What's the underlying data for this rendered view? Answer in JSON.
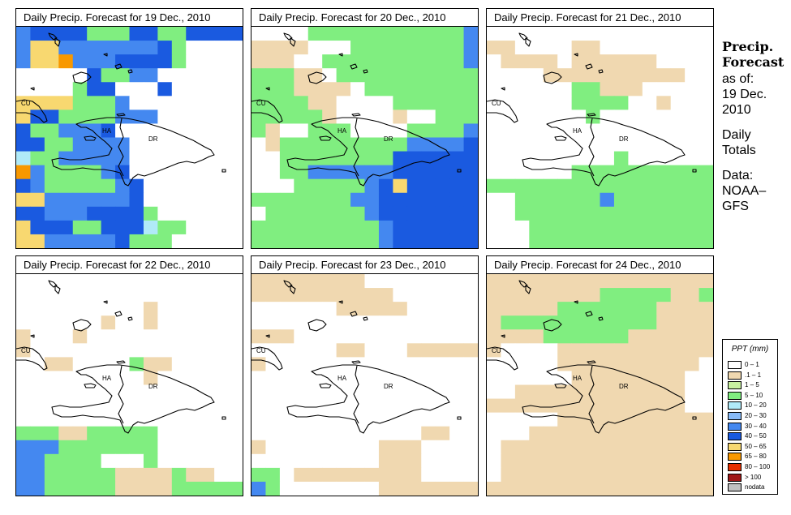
{
  "panels": [
    {
      "title": "Daily Precip. Forecast for  19 Dec., 2010",
      "grid": [
        "6777733377337777",
        "6886666666730000",
        "6889666777730000",
        "0000073366000000",
        "0000377000700000",
        "8888333600000000",
        "8773333666000000",
        "7336667000000000",
        "7733666600000000",
        "4336666600000000",
        "9633336700000000",
        "7633333670000000",
        "8866666670000000",
        "7766677773000000",
        "8777337774330000",
        "8866666733300000"
      ]
    },
    {
      "title": "Daily Precip. Forecast for  20 Dec., 2010",
      "grid": [
        "0000333333333336",
        "1111000333333336",
        "1110033333333336",
        "3331103333333333",
        "3331111033333333",
        "3333110000333333",
        "3333310000100333",
        "3100333000033336",
        "0133333333366667",
        "0033333333777777",
        "0033666666777777",
        "0003333367877777",
        "3333333667777777",
        "0333333367777777",
        "3333333336777777",
        "3333333336777777"
      ]
    },
    {
      "title": "Daily Precip. Forecast for  21 Dec., 2010",
      "grid": [
        "0000000000000000",
        "1100001100000000",
        "0111101111110000",
        "0000111111111100",
        "0000003311100000",
        "0000003333001000",
        "0000000300000000",
        "0000000000000000",
        "0000000000000000",
        "0000000003000000",
        "0000003333333333",
        "3333333333333333",
        "0033333363333333",
        "0033333333333333",
        "0003333333333333",
        "0003333333333333"
      ]
    },
    {
      "title": "Daily Precip. Forecast for  22 Dec., 2010",
      "grid": [
        "0000000000000000",
        "0000000000000000",
        "0000000001000000",
        "0000001001000000",
        "1000100000000000",
        "1000000000000000",
        "0011000031100000",
        "0000000001000000",
        "0000000000000000",
        "0000000000000000",
        "0000000000000000",
        "3331133333000000",
        "6663333333000000",
        "6633330003000000",
        "6633333111131100",
        "6633333111133333"
      ]
    },
    {
      "title": "Daily Precip. Forecast for  23 Dec., 2010",
      "grid": [
        "1111111100000000",
        "1111111111000000",
        "0000001111100000",
        "0000000000000000",
        "1110000000000000",
        "0000001100011111",
        "1000000000000000",
        "0000000000000000",
        "0000000000000000",
        "0000000000000000",
        "0000000000000000",
        "0000000000001100",
        "1000000001110000",
        "0000000001110000",
        "3301111111110000",
        "6300000001111111"
      ]
    },
    {
      "title": "Daily Precip. Forecast for  24 Dec., 2010",
      "grid": [
        "1111111111111111",
        "1111111133333113",
        "1111133333331111",
        "1333333333331111",
        "1111333333111111",
        "1000011111111111",
        "0000011111111110",
        "0000001111111100",
        "0011111111111100",
        "1111111111111100",
        "0000011111111111",
        "0001111111111111",
        "0111111111111111",
        "0111111111111111",
        "0111111111111111",
        "1111111111111111"
      ]
    }
  ],
  "map_labels": {
    "cu": "CU",
    "ha": "HA",
    "dr": "DR"
  },
  "sidebar": {
    "title_line1": "Precip.",
    "title_line2": "Forecast",
    "asof": "as of:",
    "date_line1": "19 Dec.",
    "date_line2": "2010",
    "totals_line1": "Daily",
    "totals_line2": "Totals",
    "data_line1": "Data:",
    "data_line2": "NOAA–",
    "data_line3": "GFS"
  },
  "legend": {
    "title": "PPT (mm)",
    "items": [
      {
        "label": "0 – 1",
        "color": "#ffffff"
      },
      {
        "label": ".1 – 1",
        "color": "#f0d8b0"
      },
      {
        "label": "1 – 5",
        "color": "#c8f0a0"
      },
      {
        "label": "5 – 10",
        "color": "#80ee80"
      },
      {
        "label": "10 – 20",
        "color": "#b0eaf8"
      },
      {
        "label": "20 – 30",
        "color": "#88bbf8"
      },
      {
        "label": "30 – 40",
        "color": "#4488f0"
      },
      {
        "label": "40 – 50",
        "color": "#1a5ae0"
      },
      {
        "label": "50 – 65",
        "color": "#f8d870"
      },
      {
        "label": "65 – 80",
        "color": "#f89800"
      },
      {
        "label": "80 – 100",
        "color": "#e83000"
      },
      {
        "label": "> 100",
        "color": "#a01818"
      },
      {
        "label": "nodata",
        "color": "#c0c0c0"
      }
    ]
  }
}
